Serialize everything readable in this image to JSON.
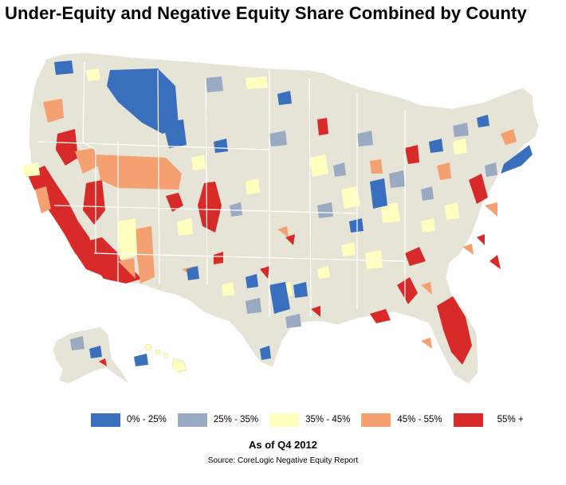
{
  "title": "Under-Equity and Negative Equity Share Combined by County",
  "legend": [
    {
      "label": "0% - 25%",
      "color": "#3a6fbd"
    },
    {
      "label": "25% - 35%",
      "color": "#9aaac2"
    },
    {
      "label": "35% - 45%",
      "color": "#ffffc0"
    },
    {
      "label": "45% - 55%",
      "color": "#f5a070"
    },
    {
      "label": "55% +",
      "color": "#d82a28"
    }
  ],
  "as_of": "As of Q4 2012",
  "source": "Source: CoreLogic Negative Equity Report",
  "land_color": "#e6e4d6",
  "border_color": "#ffffff"
}
